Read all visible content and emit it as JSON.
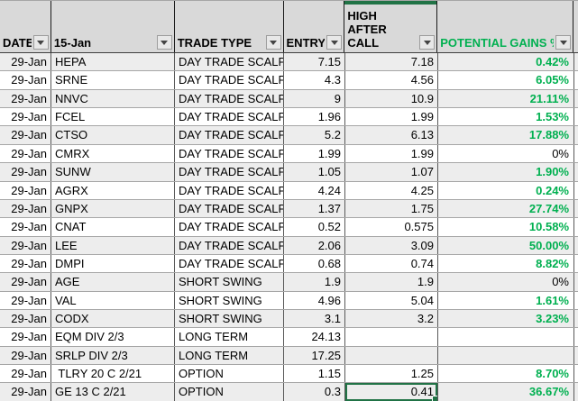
{
  "app": {
    "type": "spreadsheet-grid"
  },
  "colors": {
    "gain_green": "#00b050",
    "selection_green": "#217346",
    "header_bg": "#d9d9d9",
    "stripe_bg": "#ededed"
  },
  "table": {
    "columns": {
      "date": {
        "label": "DATE"
      },
      "ticker": {
        "label": "15-Jan"
      },
      "trade": {
        "label": "TRADE TYPE"
      },
      "entry": {
        "label": "ENTRY"
      },
      "high": {
        "label": "HIGH AFTER CALL"
      },
      "gains": {
        "label": "POTENTIAL GAINS %"
      }
    },
    "rows": [
      {
        "date": "29-Jan",
        "ticker": "HEPA",
        "trade": "DAY TRADE SCALP",
        "entry": "7.15",
        "high": "7.18",
        "gains": "0.42%"
      },
      {
        "date": "29-Jan",
        "ticker": "SRNE",
        "trade": "DAY TRADE SCALP",
        "entry": "4.3",
        "high": "4.56",
        "gains": "6.05%"
      },
      {
        "date": "29-Jan",
        "ticker": "NNVC",
        "trade": "DAY TRADE SCALP",
        "entry": "9",
        "high": "10.9",
        "gains": "21.11%"
      },
      {
        "date": "29-Jan",
        "ticker": "FCEL",
        "trade": "DAY TRADE SCALP",
        "entry": "1.96",
        "high": "1.99",
        "gains": "1.53%"
      },
      {
        "date": "29-Jan",
        "ticker": "CTSO",
        "trade": "DAY TRADE SCALP",
        "entry": "5.2",
        "high": "6.13",
        "gains": "17.88%"
      },
      {
        "date": "29-Jan",
        "ticker": "CMRX",
        "trade": "DAY TRADE SCALP",
        "entry": "1.99",
        "high": "1.99",
        "gains": "0%"
      },
      {
        "date": "29-Jan",
        "ticker": "SUNW",
        "trade": "DAY TRADE SCALP",
        "entry": "1.05",
        "high": "1.07",
        "gains": "1.90%"
      },
      {
        "date": "29-Jan",
        "ticker": "AGRX",
        "trade": "DAY TRADE SCALP",
        "entry": "4.24",
        "high": "4.25",
        "gains": "0.24%"
      },
      {
        "date": "29-Jan",
        "ticker": "GNPX",
        "trade": "DAY TRADE SCALP",
        "entry": "1.37",
        "high": "1.75",
        "gains": "27.74%"
      },
      {
        "date": "29-Jan",
        "ticker": "CNAT",
        "trade": "DAY TRADE SCALP",
        "entry": "0.52",
        "high": "0.575",
        "gains": "10.58%"
      },
      {
        "date": "29-Jan",
        "ticker": "LEE",
        "trade": "DAY TRADE SCALP",
        "entry": "2.06",
        "high": "3.09",
        "gains": "50.00%"
      },
      {
        "date": "29-Jan",
        "ticker": "DMPI",
        "trade": "DAY TRADE SCALP",
        "entry": "0.68",
        "high": "0.74",
        "gains": "8.82%"
      },
      {
        "date": "29-Jan",
        "ticker": "AGE",
        "trade": "SHORT SWING",
        "entry": "1.9",
        "high": "1.9",
        "gains": "0%"
      },
      {
        "date": "29-Jan",
        "ticker": "VAL",
        "trade": "SHORT SWING",
        "entry": "4.96",
        "high": "5.04",
        "gains": "1.61%"
      },
      {
        "date": "29-Jan",
        "ticker": "CODX",
        "trade": "SHORT SWING",
        "entry": "3.1",
        "high": "3.2",
        "gains": "3.23%"
      },
      {
        "date": "29-Jan",
        "ticker": "EQM DIV 2/3",
        "trade": "LONG TERM",
        "entry": "24.13",
        "high": "",
        "gains": ""
      },
      {
        "date": "29-Jan",
        "ticker": "SRLP DIV 2/3",
        "trade": "LONG TERM",
        "entry": "17.25",
        "high": "",
        "gains": ""
      },
      {
        "date": "29-Jan",
        "ticker": " TLRY 20 C 2/21",
        "trade": "OPTION",
        "entry": "1.15",
        "high": "1.25",
        "gains": "8.70%"
      },
      {
        "date": "29-Jan",
        "ticker": "GE 13 C 2/21",
        "trade": "OPTION",
        "entry": "0.3",
        "high": "0.41",
        "gains": "36.67%"
      }
    ],
    "selected_cell": {
      "row_index": 18,
      "column": "high"
    }
  }
}
